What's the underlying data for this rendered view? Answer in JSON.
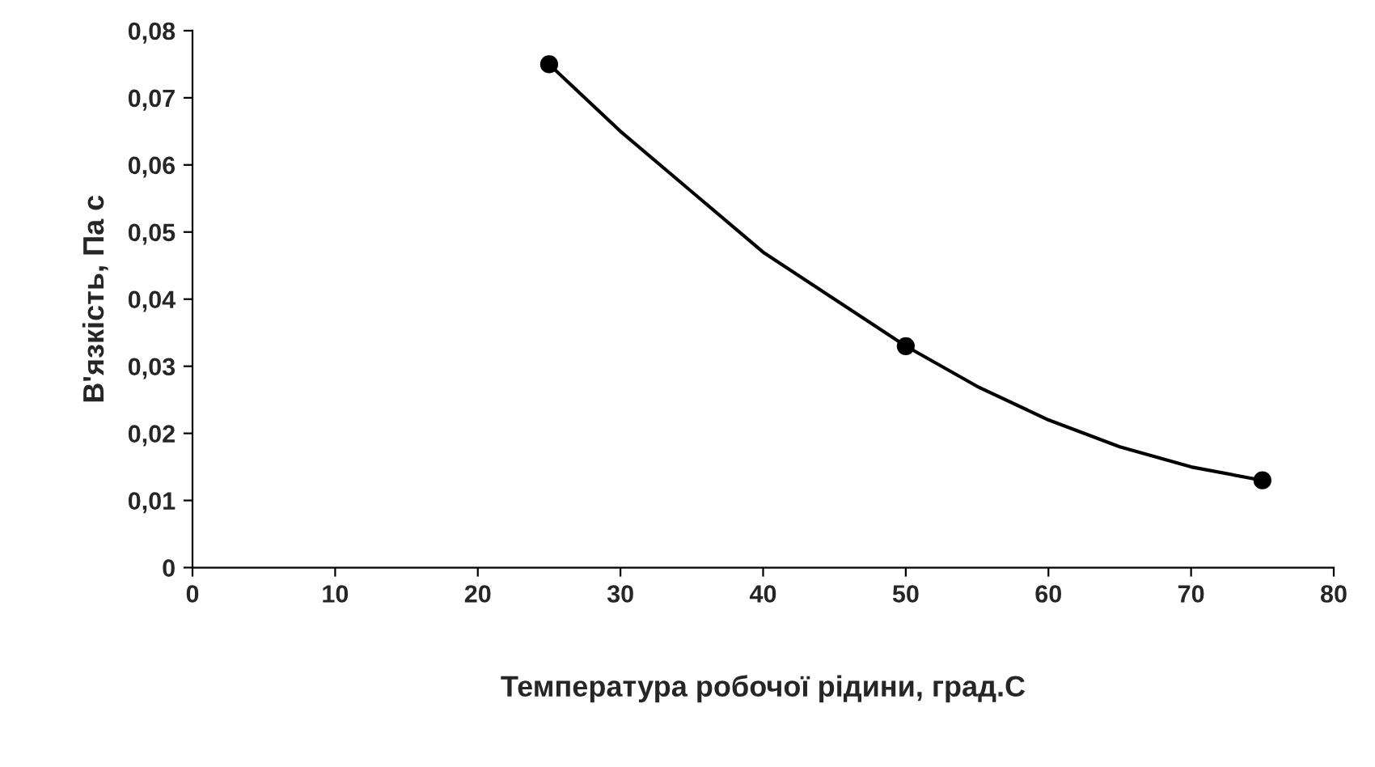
{
  "chart_data": {
    "type": "line",
    "xlabel": "Температура робочої рідини, град.С",
    "ylabel": "В'язкість, Па с",
    "x": [
      25,
      50,
      75
    ],
    "series": [
      {
        "type": "scatter",
        "marker": "circle",
        "color": "#000000",
        "values": [
          0.075,
          0.033,
          0.013
        ]
      },
      {
        "marker": "none",
        "color": "#000000",
        "x": [
          25,
          30,
          35,
          40,
          45,
          50,
          55,
          60,
          65,
          70,
          75
        ],
        "values": [
          0.075,
          0.065,
          0.056,
          0.047,
          0.04,
          0.033,
          0.027,
          0.022,
          0.018,
          0.015,
          0.013
        ]
      }
    ],
    "line_style": "solid",
    "grid": false,
    "legend": false,
    "xlim": [
      0,
      80
    ],
    "xticks": [
      0,
      10,
      20,
      30,
      40,
      50,
      60,
      70,
      80
    ],
    "ylim": [
      0,
      0.08
    ],
    "yticks": [
      0,
      {
        "value": 0.01,
        "label": "0,01"
      },
      {
        "value": 0.02,
        "label": "0,02"
      },
      {
        "value": 0.03,
        "label": "0,03"
      },
      {
        "value": 0.04,
        "label": "0,04"
      },
      {
        "value": 0.05,
        "label": "0,05"
      },
      {
        "value": 0.06,
        "label": "0,06"
      },
      {
        "value": 0.07,
        "label": "0,07"
      },
      {
        "value": 0.08,
        "label": "0,08"
      }
    ]
  }
}
